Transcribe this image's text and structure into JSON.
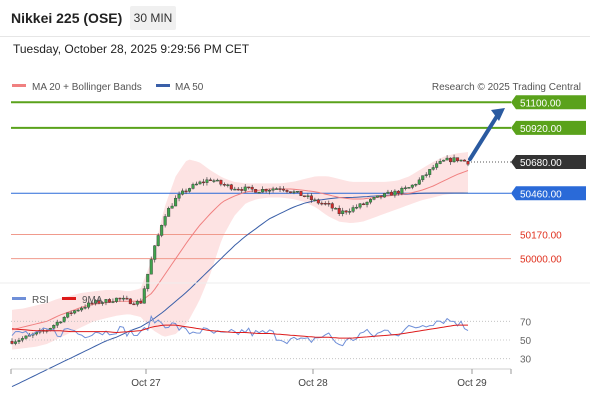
{
  "header": {
    "title": "Nikkei 225 (OSE)",
    "timeframe": "30 MIN"
  },
  "datetime": "Tuesday, October 28, 2025 9:29:56 PM CET",
  "credit": "Research © 2025 Trading Central",
  "legend": {
    "main": [
      {
        "name": "MA 20 + Bollinger Bands",
        "color": "#f08080"
      },
      {
        "name": "MA 50",
        "color": "#3a5fa8"
      }
    ],
    "rsi": [
      {
        "name": "RSI",
        "color": "#6f8fd8"
      },
      {
        "name": "9MA",
        "color": "#dd1a1a"
      }
    ]
  },
  "chart_data": [
    {
      "type": "candlestick",
      "title": "",
      "xlabel": "",
      "ylabel": "",
      "x_tick_labels": [
        "Oct 27",
        "Oct 28",
        "Oct 29"
      ],
      "ylim": [
        49850,
        51130
      ],
      "levels": [
        {
          "value": 51100,
          "label": "51100.00",
          "kind": "resistance",
          "color": "#5aa21b"
        },
        {
          "value": 50920,
          "label": "50920.00",
          "kind": "resistance",
          "color": "#5aa21b"
        },
        {
          "value": 50680,
          "label": "50680.00",
          "kind": "last price",
          "color": "#333333"
        },
        {
          "value": 50460,
          "label": "50460.00",
          "kind": "pivot",
          "color": "#2a6ad8"
        },
        {
          "value": 50170,
          "label": "50170.00",
          "kind": "support",
          "color": "#e0301e"
        },
        {
          "value": 50000,
          "label": "50000.00",
          "kind": "support",
          "color": "#e0301e"
        }
      ],
      "projection": {
        "from": 50700,
        "to": 51060,
        "color": "#2a5aa0"
      },
      "anchors": {
        "price": [
          49420,
          49440,
          49470,
          49500,
          49560,
          49620,
          49660,
          49690,
          49700,
          49720,
          49700,
          49690,
          50020,
          50300,
          50420,
          50490,
          50530,
          50560,
          50520,
          50500,
          50490,
          50480,
          50490,
          50500,
          50470,
          50440,
          50400,
          50380,
          50320,
          50350,
          50380,
          50420,
          50450,
          50470,
          50500,
          50560,
          50640,
          50690,
          50700,
          50680
        ],
        "ma20": [
          49500,
          49520,
          49540,
          49560,
          49600,
          49630,
          49660,
          49680,
          49690,
          49700,
          49700,
          49700,
          49760,
          49880,
          50000,
          50120,
          50230,
          50320,
          50400,
          50440,
          50470,
          50480,
          50490,
          50490,
          50490,
          50480,
          50470,
          50450,
          50430,
          50420,
          50420,
          50430,
          50440,
          50450,
          50460,
          50480,
          50510,
          50550,
          50590,
          50620
        ],
        "bbup": [
          49640,
          49650,
          49670,
          49690,
          49720,
          49740,
          49760,
          49770,
          49780,
          49780,
          49770,
          49790,
          50000,
          50350,
          50580,
          50700,
          50680,
          50620,
          50570,
          50540,
          50530,
          50530,
          50530,
          50530,
          50540,
          50560,
          50580,
          50580,
          50560,
          50540,
          50540,
          50540,
          50540,
          50550,
          50580,
          50630,
          50680,
          50720,
          50740,
          50750
        ],
        "bblo": [
          49360,
          49370,
          49380,
          49400,
          49440,
          49480,
          49520,
          49560,
          49580,
          49600,
          49610,
          49590,
          49500,
          49450,
          49470,
          49550,
          49700,
          49900,
          50150,
          50300,
          50390,
          50420,
          50430,
          50430,
          50420,
          50400,
          50360,
          50300,
          50260,
          50250,
          50260,
          50290,
          50320,
          50350,
          50380,
          50410,
          50430,
          50450,
          50460,
          50470
        ],
        "ma50": [
          49100,
          49140,
          49180,
          49220,
          49260,
          49300,
          49340,
          49380,
          49420,
          49450,
          49490,
          49520,
          49570,
          49630,
          49700,
          49770,
          49850,
          49930,
          50010,
          50090,
          50160,
          50220,
          50280,
          50320,
          50360,
          50390,
          50410,
          50420,
          50430,
          50430,
          50435,
          50440,
          50445,
          50450,
          50455,
          50460,
          50462,
          50462,
          50462,
          50462
        ],
        "rsi": [
          55,
          58,
          54,
          60,
          57,
          62,
          55,
          60,
          58,
          62,
          58,
          55,
          72,
          68,
          65,
          58,
          60,
          58,
          55,
          57,
          60,
          56,
          58,
          52,
          50,
          48,
          52,
          56,
          45,
          50,
          58,
          55,
          60,
          58,
          62,
          66,
          70,
          72,
          70,
          62
        ],
        "rsi9": [
          62,
          61,
          60,
          60,
          60,
          59,
          59,
          59,
          59,
          58,
          59,
          60,
          64,
          66,
          66,
          64,
          62,
          60,
          59,
          58,
          58,
          57,
          57,
          56,
          55,
          54,
          53,
          53,
          52,
          52,
          53,
          54,
          55,
          56,
          58,
          60,
          62,
          64,
          66,
          66
        ]
      }
    },
    {
      "type": "line",
      "title": "",
      "xlabel": "",
      "ylabel": "",
      "ylim": [
        20,
        80
      ],
      "y_ticks": [
        70,
        50,
        30
      ],
      "series": [
        {
          "name": "RSI"
        },
        {
          "name": "9MA"
        }
      ]
    }
  ]
}
